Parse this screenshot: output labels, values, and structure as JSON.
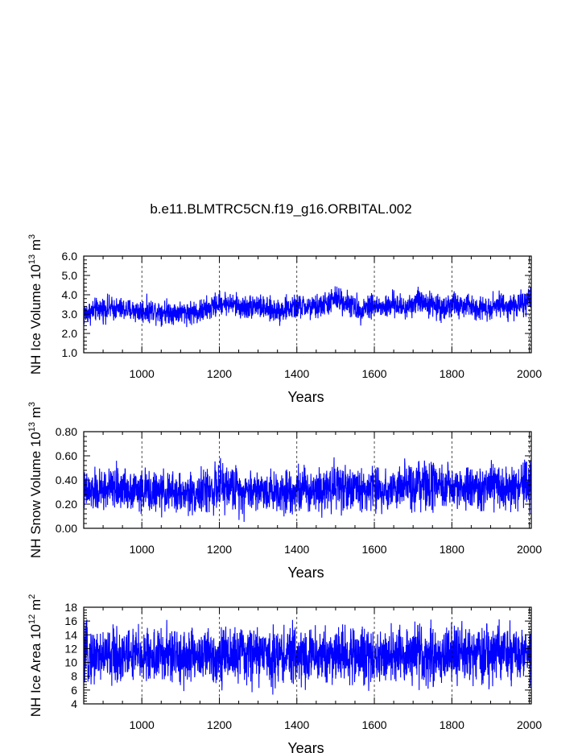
{
  "title": "b.e11.BLMTRC5CN.f19_g16.ORBITAL.002",
  "colors": {
    "series": "#0000ff",
    "axis": "#000000",
    "grid": "#000000"
  },
  "chart_data": [
    {
      "type": "line",
      "title": "b.e11.BLMTRC5CN.f19_g16.ORBITAL.002",
      "xlabel": "Years",
      "ylabel": {
        "base": "NH Ice Volume 10",
        "exp": "13",
        "unit": " m",
        "unit_exp": "3"
      },
      "xlim": [
        850,
        2005
      ],
      "ylim": [
        1.0,
        6.0
      ],
      "xticks": [
        1000,
        1200,
        1400,
        1600,
        1800,
        2000
      ],
      "xtick_labels": [
        "1000",
        "1200",
        "1400",
        "1600",
        "1800",
        "2000"
      ],
      "yticks": [
        1.0,
        2.0,
        3.0,
        4.0,
        5.0,
        6.0
      ],
      "ytick_labels": [
        "1.0",
        "2.0",
        "3.0",
        "4.0",
        "5.0",
        "6.0"
      ],
      "grid": "vertical dashed at x ticks",
      "series": [
        {
          "name": "NH Ice Volume",
          "x_start": 850,
          "x_end": 2005,
          "band_centers": [
            3.0,
            3.2,
            3.3,
            3.25,
            3.2,
            3.15,
            3.2,
            3.15,
            3.1,
            3.1,
            3.1,
            3.3,
            3.6,
            3.5,
            3.3,
            3.5,
            3.2,
            3.2,
            3.3,
            3.4,
            3.3,
            3.5,
            3.8,
            3.6,
            3.2,
            3.5,
            3.3,
            3.5,
            3.3,
            3.7,
            3.6,
            3.3,
            3.5,
            3.4,
            3.4,
            3.3,
            3.5,
            3.4,
            3.5,
            3.6
          ],
          "band_halfwidths": [
            0.8,
            0.7,
            0.75,
            0.7,
            0.7,
            0.75,
            0.7,
            0.75,
            0.7,
            0.7,
            0.75,
            0.75,
            0.7,
            0.7,
            0.75,
            0.75,
            0.7,
            0.8,
            0.75,
            0.75,
            0.75,
            0.75,
            0.8,
            0.75,
            0.75,
            0.8,
            0.75,
            0.75,
            0.75,
            0.8,
            0.75,
            0.75,
            0.8,
            0.75,
            0.75,
            0.75,
            0.75,
            0.75,
            0.8,
            0.8
          ]
        }
      ]
    },
    {
      "type": "line",
      "xlabel": "Years",
      "ylabel": {
        "base": "NH Snow Volume 10",
        "exp": "13",
        "unit": " m",
        "unit_exp": "3"
      },
      "xlim": [
        850,
        2005
      ],
      "ylim": [
        0.0,
        0.8
      ],
      "xticks": [
        1000,
        1200,
        1400,
        1600,
        1800,
        2000
      ],
      "xtick_labels": [
        "1000",
        "1200",
        "1400",
        "1600",
        "1800",
        "2000"
      ],
      "yticks": [
        0.0,
        0.2,
        0.4,
        0.6,
        0.8
      ],
      "ytick_labels": [
        "0.00",
        "0.20",
        "0.40",
        "0.60",
        "0.80"
      ],
      "grid": "vertical dashed at x ticks",
      "series": [
        {
          "name": "NH Snow Volume",
          "x_start": 850,
          "x_end": 2005,
          "band_centers": [
            0.3,
            0.3,
            0.32,
            0.33,
            0.33,
            0.31,
            0.3,
            0.3,
            0.29,
            0.29,
            0.3,
            0.32,
            0.34,
            0.34,
            0.31,
            0.32,
            0.31,
            0.31,
            0.32,
            0.32,
            0.33,
            0.34,
            0.36,
            0.34,
            0.32,
            0.33,
            0.32,
            0.33,
            0.33,
            0.35,
            0.35,
            0.32,
            0.34,
            0.33,
            0.33,
            0.33,
            0.34,
            0.33,
            0.35,
            0.35
          ],
          "band_halfwidths": [
            0.2,
            0.2,
            0.22,
            0.2,
            0.2,
            0.2,
            0.2,
            0.19,
            0.2,
            0.2,
            0.2,
            0.22,
            0.24,
            0.22,
            0.22,
            0.2,
            0.2,
            0.21,
            0.21,
            0.22,
            0.22,
            0.23,
            0.26,
            0.22,
            0.21,
            0.22,
            0.21,
            0.21,
            0.22,
            0.25,
            0.24,
            0.21,
            0.22,
            0.22,
            0.22,
            0.22,
            0.23,
            0.22,
            0.24,
            0.24
          ]
        }
      ]
    },
    {
      "type": "line",
      "xlabel": "Years",
      "ylabel": {
        "base": "NH Ice Area 10",
        "exp": "12",
        "unit": " m",
        "unit_exp": "2"
      },
      "xlim": [
        850,
        2005
      ],
      "ylim": [
        4,
        18
      ],
      "xticks": [
        1000,
        1200,
        1400,
        1600,
        1800,
        2000
      ],
      "xtick_labels": [
        "1000",
        "1200",
        "1400",
        "1600",
        "1800",
        "2000"
      ],
      "yticks": [
        4,
        6,
        8,
        10,
        12,
        14,
        16,
        18
      ],
      "ytick_labels": [
        "4",
        "6",
        "8",
        "10",
        "12",
        "14",
        "16",
        "18"
      ],
      "grid": "vertical dashed at x ticks",
      "series": [
        {
          "name": "NH Ice Area",
          "x_start": 850,
          "x_end": 2005,
          "band_centers": [
            11.0,
            11.0,
            11.0,
            11.0,
            11.1,
            11.0,
            11.0,
            11.0,
            10.9,
            10.9,
            11.0,
            11.0,
            11.1,
            11.1,
            11.0,
            11.3,
            11.0,
            11.0,
            11.0,
            11.1,
            11.0,
            11.1,
            11.2,
            11.1,
            11.0,
            11.1,
            11.0,
            11.1,
            11.0,
            11.1,
            11.1,
            11.0,
            11.1,
            11.0,
            11.0,
            11.0,
            11.1,
            11.1,
            11.1,
            11.2
          ],
          "band_halfwidths": [
            4.8,
            4.6,
            4.8,
            4.7,
            4.8,
            4.7,
            4.7,
            4.8,
            4.9,
            4.8,
            4.7,
            4.8,
            4.8,
            4.7,
            4.8,
            5.0,
            4.7,
            4.8,
            4.7,
            4.8,
            4.8,
            4.9,
            4.8,
            4.7,
            4.7,
            4.8,
            4.7,
            4.8,
            4.8,
            4.9,
            4.8,
            4.7,
            4.8,
            4.8,
            4.8,
            4.8,
            4.9,
            4.8,
            4.8,
            4.9
          ]
        }
      ]
    }
  ]
}
